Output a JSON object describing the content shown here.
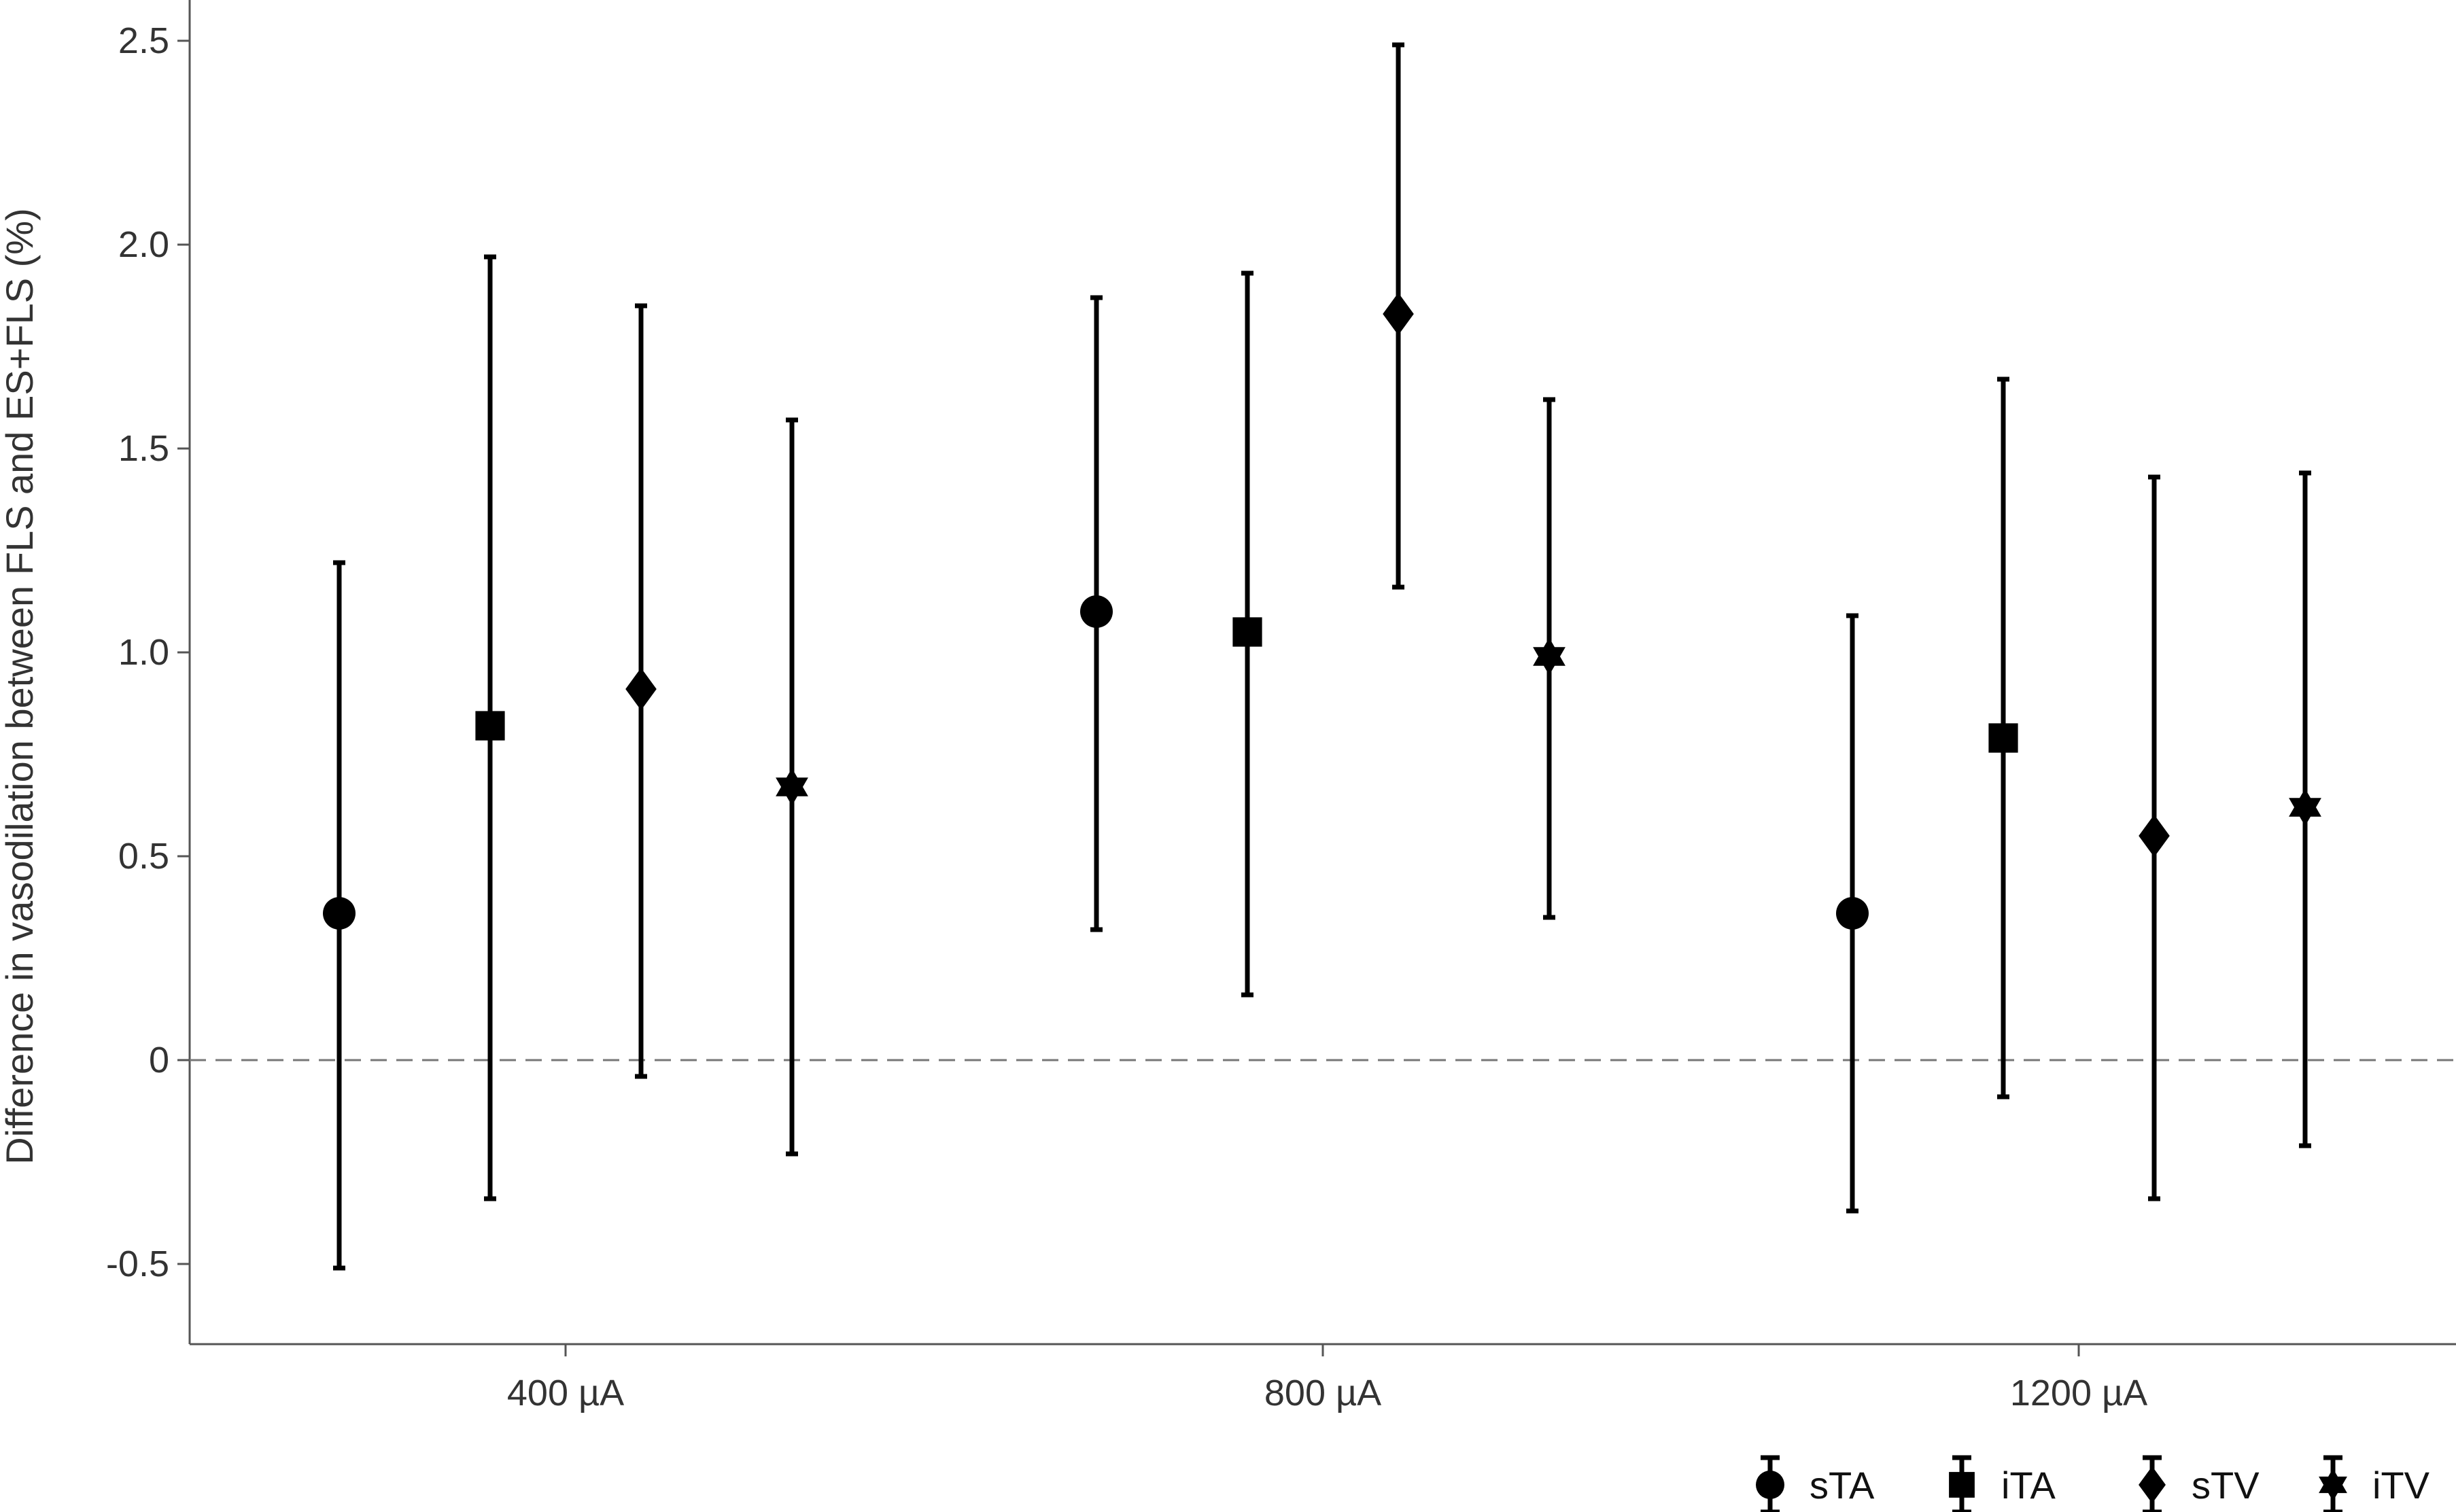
{
  "chart_data": {
    "type": "scatter",
    "subtype": "point-with-error-bars",
    "xlabel": "",
    "ylabel": "Difference in vasodilation between FLS and ES+FLS (%)",
    "categories": [
      "400 µA",
      "800 µA",
      "1200 µA"
    ],
    "ylim": [
      -0.7,
      2.6
    ],
    "yticks": [
      -0.5,
      0,
      0.5,
      1.0,
      1.5,
      2.0,
      2.5
    ],
    "ytick_labels": [
      "-0.5",
      "0",
      "0.5",
      "1.0",
      "1.5",
      "2.0",
      "2.5"
    ],
    "reference_line": {
      "y": 0,
      "style": "dashed"
    },
    "grid": false,
    "legend_position": "bottom-right",
    "series": [
      {
        "name": "sTA",
        "marker": "circle",
        "values": [
          0.36,
          1.1,
          0.36
        ],
        "lower": [
          -0.51,
          0.32,
          -0.37
        ],
        "upper": [
          1.22,
          1.87,
          1.09
        ]
      },
      {
        "name": "iTA",
        "marker": "square",
        "values": [
          0.82,
          1.05,
          0.79
        ],
        "lower": [
          -0.34,
          0.16,
          -0.09
        ],
        "upper": [
          1.97,
          1.93,
          1.67
        ]
      },
      {
        "name": "sTV",
        "marker": "diamond",
        "values": [
          0.91,
          1.83,
          0.55
        ],
        "lower": [
          -0.04,
          1.16,
          -0.34
        ],
        "upper": [
          1.85,
          2.49,
          1.43
        ]
      },
      {
        "name": "iTV",
        "marker": "star",
        "values": [
          0.67,
          0.99,
          0.62
        ],
        "lower": [
          -0.23,
          0.35,
          -0.21
        ],
        "upper": [
          1.57,
          1.62,
          1.44
        ]
      }
    ],
    "colors": {
      "marks": "#000000",
      "axis": "#555555",
      "text": "#333333",
      "reference": "#777777"
    }
  }
}
